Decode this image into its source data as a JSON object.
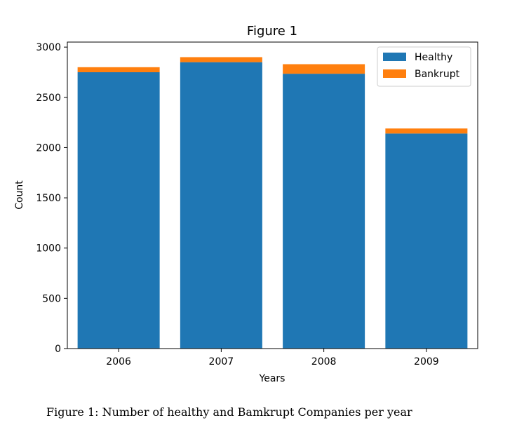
{
  "chart_data": {
    "type": "bar",
    "stacked": true,
    "title": "Figure 1",
    "xlabel": "Years",
    "ylabel": "Count",
    "categories": [
      "2006",
      "2007",
      "2008",
      "2009"
    ],
    "series": [
      {
        "name": "Healthy",
        "values": [
          2750,
          2850,
          2735,
          2140
        ],
        "color": "#1f77b4"
      },
      {
        "name": "Bankrupt",
        "values": [
          50,
          50,
          95,
          50
        ],
        "color": "#ff7f0e"
      }
    ],
    "ylim": [
      0,
      3050
    ],
    "yticks": [
      0,
      500,
      1000,
      1500,
      2000,
      2500,
      3000
    ],
    "legend_position": "top-right",
    "grid": false
  },
  "caption": "Figure 1: Number of healthy and Bamkrupt Companies per year"
}
